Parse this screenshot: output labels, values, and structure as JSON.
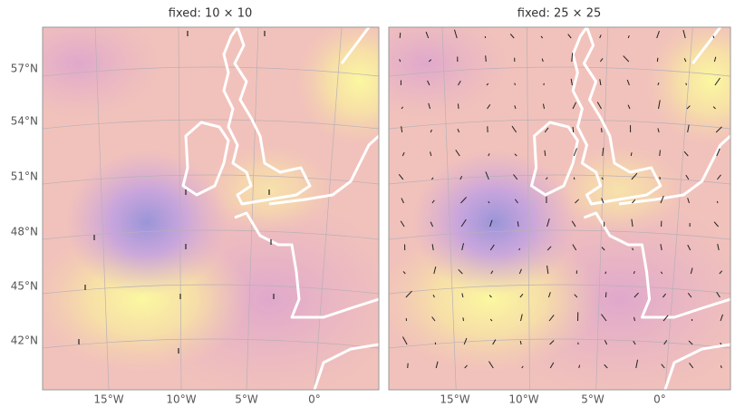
{
  "panels": [
    {
      "title": "fixed: 10 × 10",
      "x_labels": [
        "15°W",
        "10°W",
        "5°W",
        "0°"
      ]
    },
    {
      "title": "fixed: 25 × 25",
      "x_labels": [
        "15°W",
        "10°W",
        "5°W",
        "0°"
      ]
    }
  ],
  "y_labels": [
    "57°N",
    "54°N",
    "51°N",
    "48°N",
    "45°N",
    "42°N"
  ]
}
